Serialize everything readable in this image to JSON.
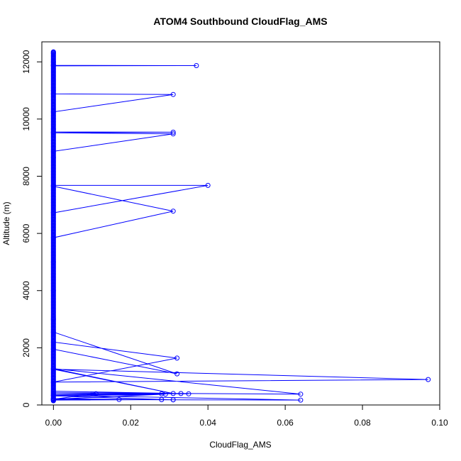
{
  "chart_data": {
    "type": "line",
    "title": "ATOM4 Southbound CloudFlag_AMS",
    "xlabel": "CloudFlag_AMS",
    "ylabel": "Altitude (m)",
    "xlim": [
      -0.003,
      0.1
    ],
    "ylim": [
      0,
      12700
    ],
    "xticks": [
      "0.00",
      "0.02",
      "0.04",
      "0.06",
      "0.08",
      "0.10"
    ],
    "yticks": [
      "0",
      "2000",
      "4000",
      "6000",
      "8000",
      "10000",
      "12000"
    ],
    "color": "#0000ff",
    "markers": "open-circle",
    "series": [
      {
        "x": [
          0,
          0,
          0,
          0,
          0,
          0.037,
          0,
          0,
          0,
          0.031,
          0,
          0,
          0,
          0.031,
          0,
          0.031,
          0,
          0,
          0,
          0.04,
          0,
          0,
          0.031,
          0,
          0,
          0,
          0,
          0,
          0.032,
          0,
          0,
          0.032,
          0,
          0.097,
          0,
          0.031,
          0,
          0.064,
          0,
          0.035,
          0,
          0.033,
          0,
          0.064,
          0,
          0.028,
          0,
          0.011,
          0,
          0.029,
          0,
          0.031,
          0,
          0.017,
          0,
          0.031,
          0,
          0.028,
          0,
          0,
          0
        ],
        "y": [
          12350,
          12300,
          12000,
          11900,
          11880,
          11870,
          11860,
          11000,
          10880,
          10860,
          10250,
          9650,
          9550,
          9540,
          9520,
          9480,
          8870,
          8650,
          7680,
          7680,
          6720,
          7650,
          6780,
          5850,
          5000,
          4000,
          3000,
          2550,
          1090,
          1950,
          2200,
          1640,
          800,
          890,
          1250,
          400,
          1270,
          380,
          430,
          390,
          480,
          400,
          340,
          170,
          190,
          390,
          380,
          395,
          200,
          380,
          320,
          180,
          200,
          190,
          220,
          180,
          210,
          185,
          170,
          160,
          150
        ]
      }
    ]
  }
}
